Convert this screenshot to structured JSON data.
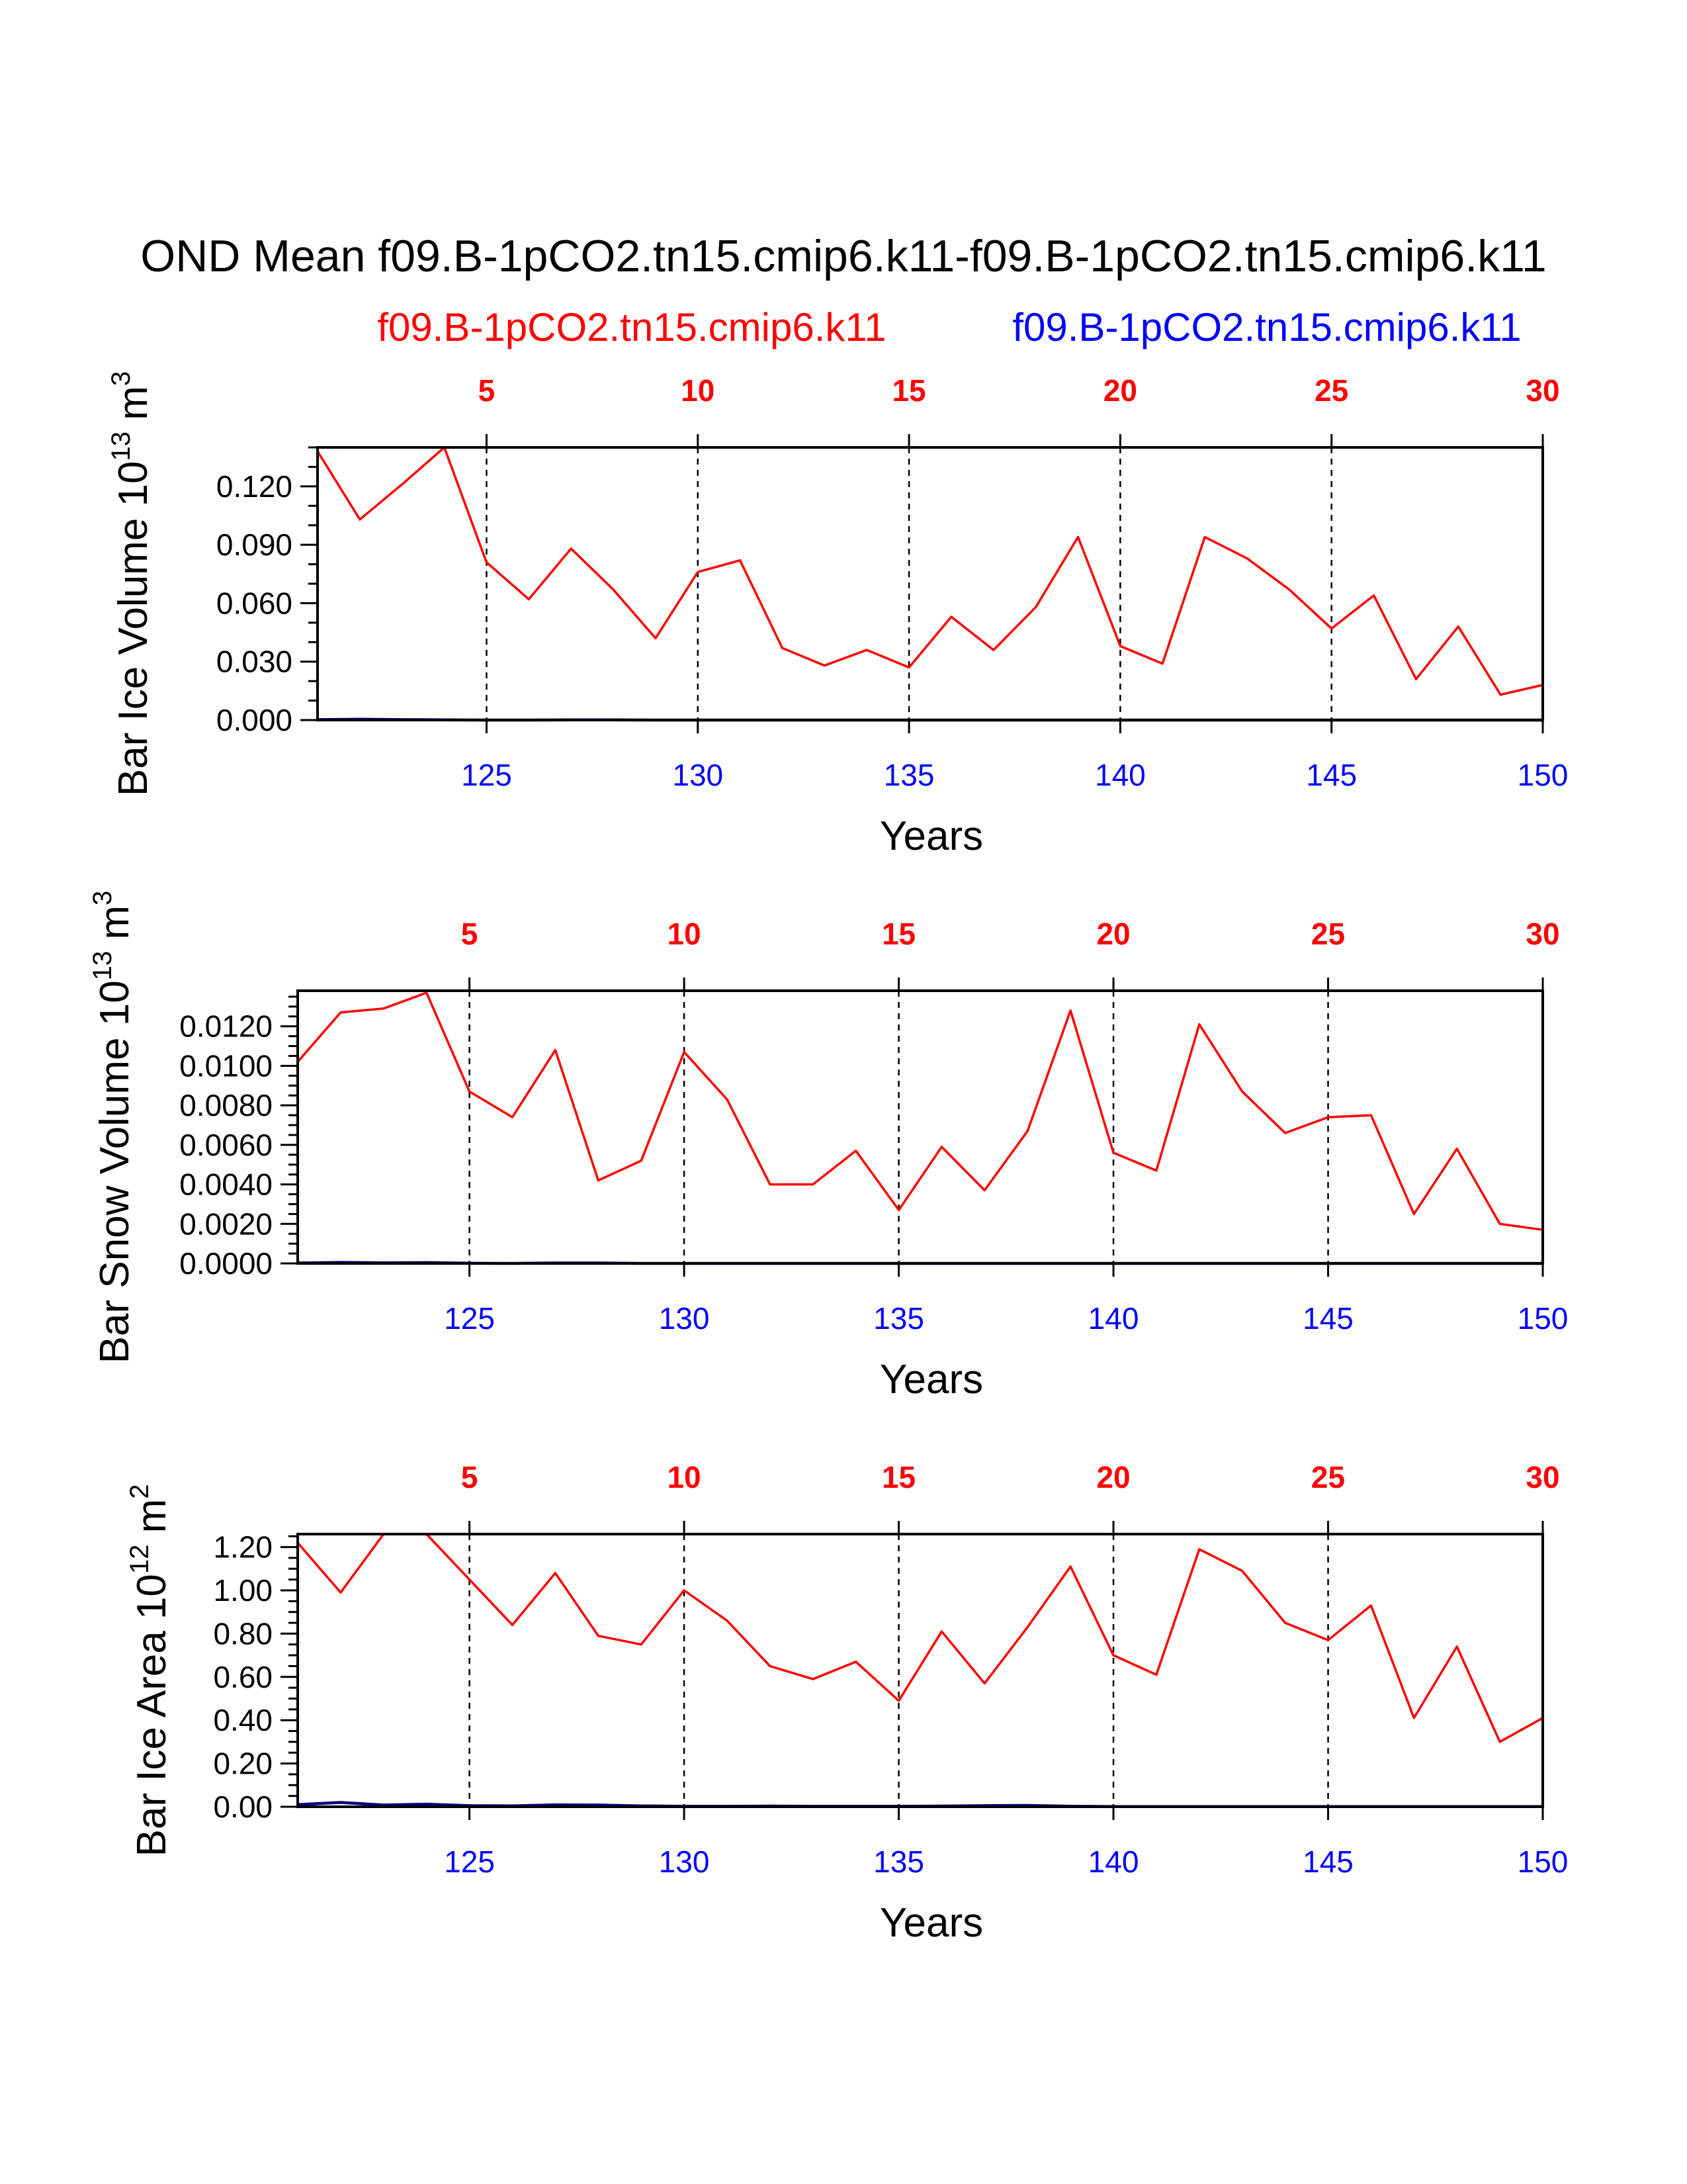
{
  "title": "OND Mean f09.B-1pCO2.tn15.cmip6.k11-f09.B-1pCO2.tn15.cmip6.k11",
  "cases": [
    {
      "name": "f09.B-1pCO2.tn15.cmip6.k11",
      "color": "#ff0000"
    },
    {
      "name": "f09.B-1pCO2.tn15.cmip6.k11",
      "color": "#0000ff"
    }
  ],
  "colors": {
    "case1": "#ff0000",
    "case2": "#0000ff",
    "case2_line": "#000080",
    "axis": "#000000"
  },
  "chart_data": [
    {
      "type": "line",
      "ylabel": {
        "text": "Bar Ice Volume 10",
        "exp": "13",
        "unit": " m",
        "unit_exp": "3"
      },
      "xlabel": "Years",
      "xlim": [
        121,
        150
      ],
      "ylim": [
        0,
        0.14
      ],
      "yticks": [
        0.0,
        0.03,
        0.06,
        0.09,
        0.12
      ],
      "ytick_labels": [
        "0.000",
        "0.030",
        "0.060",
        "0.090",
        "0.120"
      ],
      "yminor_step": 0.01,
      "x_bottom_ticks": [
        125,
        130,
        135,
        140,
        145,
        150
      ],
      "x_bottom_labels": [
        "125",
        "130",
        "135",
        "140",
        "145",
        "150"
      ],
      "x_top_ticks": [
        125,
        130,
        135,
        140,
        145,
        150
      ],
      "x_top_labels": [
        "5",
        "10",
        "15",
        "20",
        "25",
        "30"
      ],
      "x": [
        121,
        122,
        123,
        124,
        125,
        126,
        127,
        128,
        129,
        130,
        131,
        132,
        133,
        134,
        135,
        136,
        137,
        138,
        139,
        140,
        141,
        142,
        143,
        144,
        145,
        146,
        147,
        148,
        149,
        150
      ],
      "series": [
        {
          "name": "f09.B-1pCO2.tn15.cmip6.k11",
          "color": "#ff0000",
          "values": [
            0.138,
            0.103,
            0.121,
            0.14,
            0.081,
            0.062,
            0.088,
            0.067,
            0.042,
            0.076,
            0.082,
            0.037,
            0.028,
            0.036,
            0.027,
            0.053,
            0.036,
            0.058,
            0.094,
            0.038,
            0.029,
            0.094,
            0.083,
            0.067,
            0.047,
            0.064,
            0.021,
            0.048,
            0.013,
            0.018
          ]
        },
        {
          "name": "f09.B-1pCO2.tn15.cmip6.k11",
          "color": "#000080",
          "values": [
            0.0002,
            0.0004,
            0.0002,
            0.0001,
            0.0,
            0.0,
            0.0001,
            0.0001,
            0.0,
            0.0,
            0.0,
            0.0,
            0.0,
            0.0,
            0.0,
            0.0,
            0.0,
            0.0,
            0.0,
            0.0,
            0.0,
            0.0,
            0.0,
            0.0,
            0.0,
            0.0,
            0.0,
            0.0,
            0.0,
            0.0
          ]
        }
      ]
    },
    {
      "type": "line",
      "ylabel": {
        "text": "Bar Snow Volume 10",
        "exp": "13",
        "unit": " m",
        "unit_exp": "3"
      },
      "xlabel": "Years",
      "xlim": [
        121,
        150
      ],
      "ylim": [
        0,
        0.0138
      ],
      "yticks": [
        0.0,
        0.002,
        0.004,
        0.006,
        0.008,
        0.01,
        0.012
      ],
      "ytick_labels": [
        "0.0000",
        "0.0020",
        "0.0040",
        "0.0060",
        "0.0080",
        "0.0100",
        "0.0120"
      ],
      "yminor_step": 0.0005,
      "x_bottom_ticks": [
        125,
        130,
        135,
        140,
        145,
        150
      ],
      "x_bottom_labels": [
        "125",
        "130",
        "135",
        "140",
        "145",
        "150"
      ],
      "x_top_ticks": [
        125,
        130,
        135,
        140,
        145,
        150
      ],
      "x_top_labels": [
        "5",
        "10",
        "15",
        "20",
        "25",
        "30"
      ],
      "x": [
        121,
        122,
        123,
        124,
        125,
        126,
        127,
        128,
        129,
        130,
        131,
        132,
        133,
        134,
        135,
        136,
        137,
        138,
        139,
        140,
        141,
        142,
        143,
        144,
        145,
        146,
        147,
        148,
        149,
        150
      ],
      "series": [
        {
          "name": "f09.B-1pCO2.tn15.cmip6.k11",
          "color": "#ff0000",
          "values": [
            0.0102,
            0.0127,
            0.0129,
            0.0137,
            0.0087,
            0.0074,
            0.0108,
            0.0042,
            0.0052,
            0.0107,
            0.0083,
            0.004,
            0.004,
            0.0057,
            0.0027,
            0.0059,
            0.0037,
            0.0067,
            0.0128,
            0.0056,
            0.0047,
            0.0121,
            0.0087,
            0.0066,
            0.0074,
            0.0075,
            0.0025,
            0.0058,
            0.002,
            0.0017
          ]
        },
        {
          "name": "f09.B-1pCO2.tn15.cmip6.k11",
          "color": "#000080",
          "values": [
            2e-05,
            5e-05,
            3e-05,
            4e-05,
            1e-05,
            0.0,
            2e-05,
            2e-05,
            0.0,
            0.0,
            0.0,
            0.0,
            0.0,
            0.0,
            0.0,
            0.0,
            0.0,
            0.0,
            0.0,
            0.0,
            0.0,
            0.0,
            0.0,
            0.0,
            0.0,
            0.0,
            0.0,
            0.0,
            0.0,
            0.0
          ]
        }
      ]
    },
    {
      "type": "line",
      "ylabel": {
        "text": "Bar Ice Area 10",
        "exp": "12",
        "unit": " m",
        "unit_exp": "2"
      },
      "xlabel": "Years",
      "xlim": [
        121,
        150
      ],
      "ylim": [
        0,
        1.26
      ],
      "yticks": [
        0.0,
        0.2,
        0.4,
        0.6,
        0.8,
        1.0,
        1.2
      ],
      "ytick_labels": [
        "0.00",
        "0.20",
        "0.40",
        "0.60",
        "0.80",
        "1.00",
        "1.20"
      ],
      "yminor_step": 0.05,
      "x_bottom_ticks": [
        125,
        130,
        135,
        140,
        145,
        150
      ],
      "x_bottom_labels": [
        "125",
        "130",
        "135",
        "140",
        "145",
        "150"
      ],
      "x_top_ticks": [
        125,
        130,
        135,
        140,
        145,
        150
      ],
      "x_top_labels": [
        "5",
        "10",
        "15",
        "20",
        "25",
        "30"
      ],
      "x": [
        121,
        122,
        123,
        124,
        125,
        126,
        127,
        128,
        129,
        130,
        131,
        132,
        133,
        134,
        135,
        136,
        137,
        138,
        139,
        140,
        141,
        142,
        143,
        144,
        145,
        146,
        147,
        148,
        149,
        150
      ],
      "series": [
        {
          "name": "f09.B-1pCO2.tn15.cmip6.k11",
          "color": "#ff0000",
          "values": [
            1.22,
            0.99,
            1.26,
            1.26,
            1.05,
            0.84,
            1.08,
            0.79,
            0.75,
            1.0,
            0.86,
            0.65,
            0.59,
            0.67,
            0.49,
            0.81,
            0.57,
            0.83,
            1.11,
            0.7,
            0.61,
            1.19,
            1.09,
            0.85,
            0.77,
            0.93,
            0.41,
            0.74,
            0.3,
            0.41
          ]
        },
        {
          "name": "f09.B-1pCO2.tn15.cmip6.k11",
          "color": "#000080",
          "values": [
            0.01,
            0.02,
            0.008,
            0.012,
            0.005,
            0.004,
            0.009,
            0.008,
            0.004,
            0.002,
            0.002,
            0.003,
            0.002,
            0.002,
            0.002,
            0.003,
            0.005,
            0.006,
            0.002,
            0.001,
            0.001,
            0.001,
            0.001,
            0.001,
            0.001,
            0.001,
            0.001,
            0.001,
            0.001,
            0.001
          ]
        }
      ]
    }
  ]
}
